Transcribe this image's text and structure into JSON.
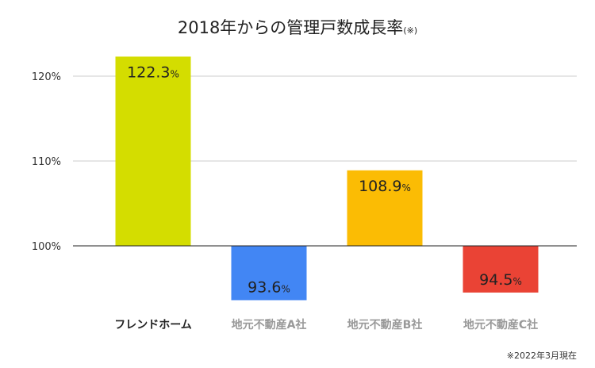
{
  "chart_data": {
    "type": "bar",
    "title": "2018年からの管理戸数成長率",
    "title_note": "(※)",
    "categories": [
      "フレンドホーム",
      "地元不動産A社",
      "地元不動産B社",
      "地元不動産C社"
    ],
    "values": [
      122.3,
      93.6,
      108.9,
      94.5
    ],
    "value_labels": [
      "122.3",
      "93.6",
      "108.9",
      "94.5"
    ],
    "value_unit": "%",
    "bar_colors": [
      "#d4dd00",
      "#4286f4",
      "#fbbc04",
      "#ea4335"
    ],
    "category_label_colors": [
      "#222222",
      "#999999",
      "#999999",
      "#999999"
    ],
    "value_label_colors": [
      "#222222",
      "#ffffff",
      "#ffffff",
      "#ffffff"
    ],
    "baseline": 100,
    "ylim": [
      90,
      125
    ],
    "yticks": [
      100,
      110,
      120
    ],
    "ytick_labels": [
      "100%",
      "110%",
      "120%"
    ],
    "grid": true,
    "xlabel": "",
    "ylabel": "",
    "footnote": "※2022年3月現在"
  }
}
